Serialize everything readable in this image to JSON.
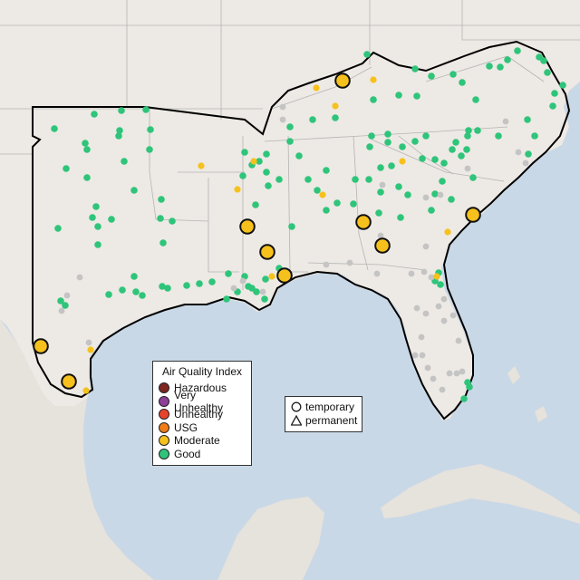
{
  "legend": {
    "title": "Air Quality Index",
    "categories": [
      {
        "label": "Hazardous",
        "color": "#7e2520"
      },
      {
        "label": "Very Unhealthy",
        "color": "#8f3f97"
      },
      {
        "label": "Unhealthy",
        "color": "#e8422b"
      },
      {
        "label": "USG",
        "color": "#f07c14"
      },
      {
        "label": "Moderate",
        "color": "#f6c11c"
      },
      {
        "label": "Good",
        "color": "#2ec57a"
      }
    ]
  },
  "type_legend": {
    "temporary": "temporary",
    "permanent": "permanent"
  },
  "colors": {
    "water": "#c9d8e6",
    "land": "#ede9e4",
    "no_data": "#c4c4c4"
  }
}
